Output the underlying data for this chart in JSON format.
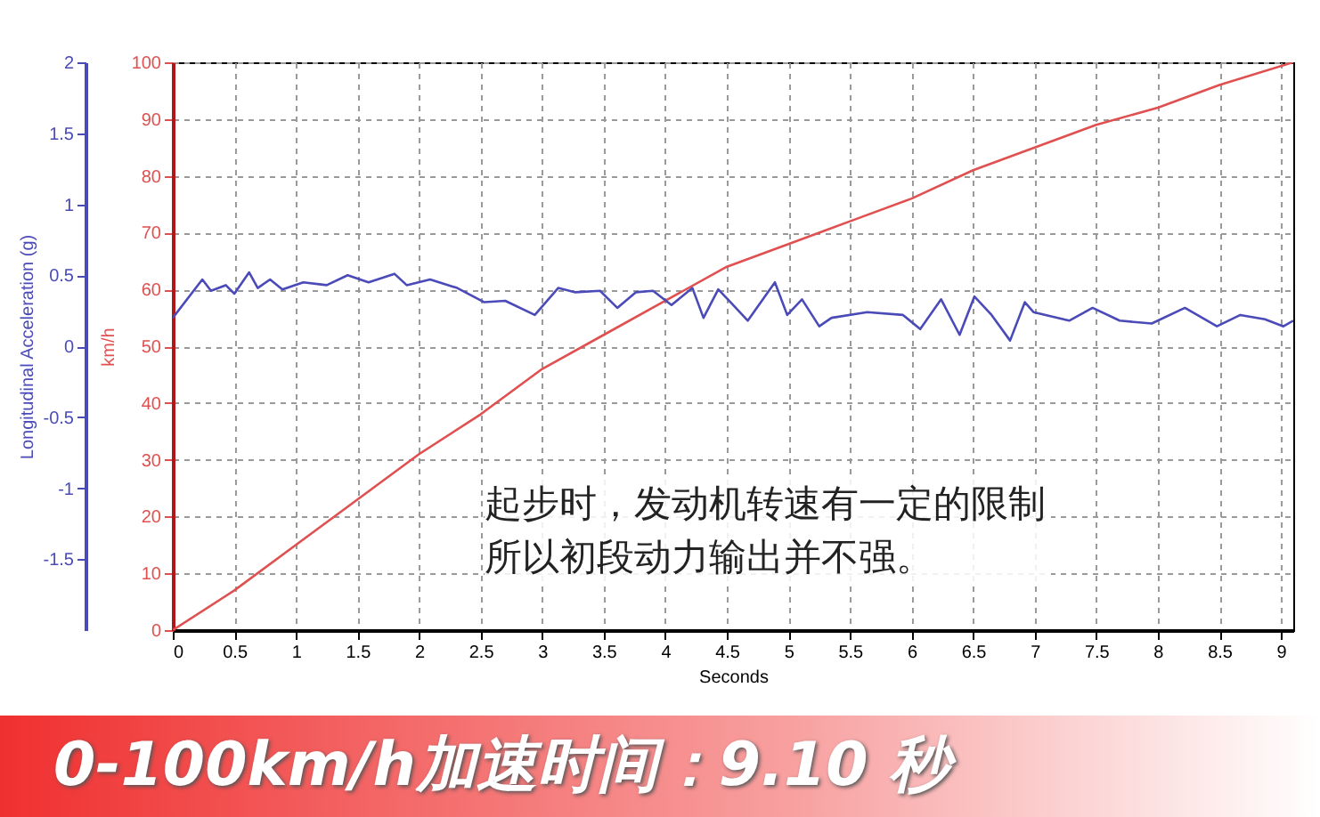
{
  "chart_data": {
    "type": "line",
    "xlabel": "Seconds",
    "ylabel": "km/h",
    "y2label": "Longitudinal Acceleration (g)",
    "xlim": [
      0,
      9.1
    ],
    "xticks": [
      0,
      0.5,
      1,
      1.5,
      2,
      2.5,
      3,
      3.5,
      4,
      4.5,
      5,
      5.5,
      6,
      6.5,
      7,
      7.5,
      8,
      8.5,
      9
    ],
    "ylim": [
      0,
      100
    ],
    "yticks": [
      0,
      10,
      20,
      30,
      40,
      50,
      60,
      70,
      80,
      90,
      100
    ],
    "y2lim": [
      -2,
      2
    ],
    "y2ticks": [
      -1.5,
      -1,
      -0.5,
      0,
      0.5,
      1,
      1.5,
      2
    ],
    "grid": true,
    "series": [
      {
        "color": "#e05050",
        "x": [
          0,
          0.5,
          1,
          1.5,
          2,
          2.5,
          3,
          3.5,
          4,
          4.5,
          5,
          5.5,
          6,
          6.5,
          7,
          7.5,
          8,
          8.5,
          9.1
        ],
        "values": [
          0,
          7,
          15,
          23,
          31,
          38,
          46,
          52,
          58,
          64,
          68,
          72,
          76,
          81,
          85,
          89,
          92,
          96,
          100
        ]
      },
      {
        "color": "#4a4ab8",
        "axis": "y2",
        "x": [
          0,
          0.24,
          0.31,
          0.43,
          0.5,
          0.62,
          0.69,
          0.79,
          0.89,
          1.06,
          1.25,
          1.42,
          1.59,
          1.8,
          1.9,
          2.09,
          2.31,
          2.53,
          2.7,
          2.94,
          3.13,
          3.27,
          3.47,
          3.61,
          3.76,
          3.9,
          4.05,
          4.22,
          4.31,
          4.43,
          4.53,
          4.67,
          4.89,
          4.99,
          5.11,
          5.25,
          5.35,
          5.64,
          5.93,
          6.07,
          6.24,
          6.39,
          6.51,
          6.65,
          6.8,
          6.92,
          6.99,
          7.28,
          7.47,
          7.69,
          7.95,
          8.22,
          8.48,
          8.67,
          8.87,
          9.02,
          9.1
        ],
        "values": [
          0.2,
          0.47,
          0.39,
          0.43,
          0.37,
          0.52,
          0.41,
          0.47,
          0.4,
          0.45,
          0.43,
          0.5,
          0.45,
          0.51,
          0.43,
          0.47,
          0.41,
          0.31,
          0.32,
          0.22,
          0.41,
          0.38,
          0.39,
          0.27,
          0.38,
          0.39,
          0.29,
          0.41,
          0.2,
          0.4,
          0.31,
          0.18,
          0.45,
          0.22,
          0.33,
          0.14,
          0.2,
          0.24,
          0.22,
          0.12,
          0.33,
          0.08,
          0.35,
          0.22,
          0.04,
          0.31,
          0.24,
          0.18,
          0.27,
          0.18,
          0.16,
          0.27,
          0.14,
          0.22,
          0.19,
          0.14,
          0.18
        ]
      }
    ],
    "annotations": [
      "起步时，发动机转速有一定的限制所以初段动力输出并不强。",
      "0-100km/h加速时间：9.10 秒"
    ]
  }
}
